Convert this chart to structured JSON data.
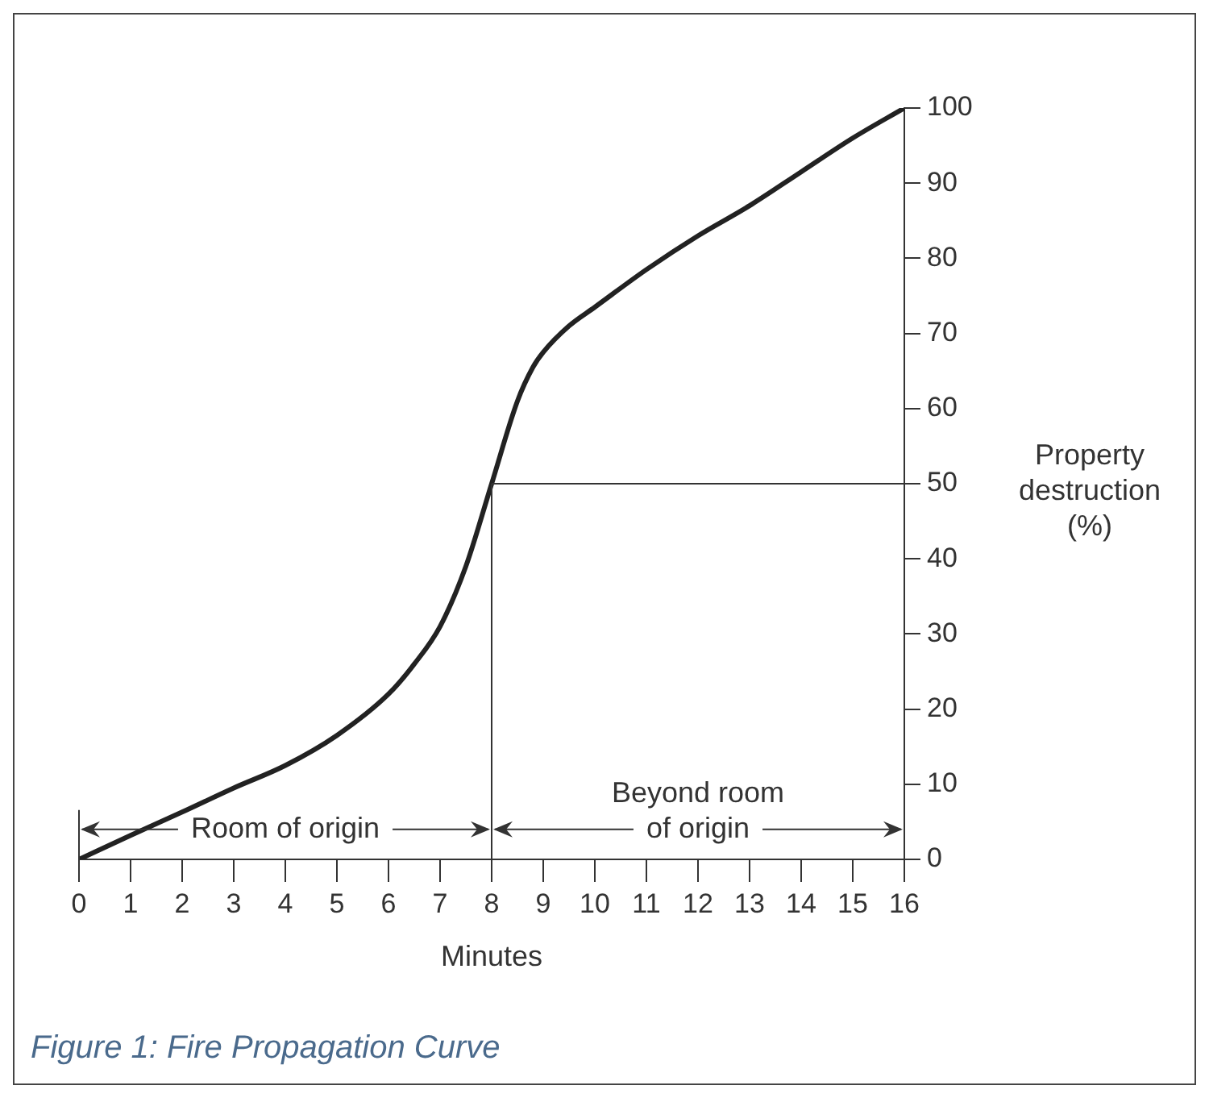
{
  "chart_data": {
    "type": "line",
    "xlabel": "Minutes",
    "ylabel": "Property destruction (%)",
    "series": [
      {
        "color": "#222222",
        "x": [
          0,
          1,
          2,
          3,
          4,
          5,
          6,
          6.5,
          7,
          7.5,
          8,
          8.5,
          8.8,
          9,
          9.5,
          10,
          11,
          12,
          13,
          14,
          15,
          16
        ],
        "values": [
          0,
          3.2,
          6.3,
          9.5,
          12.5,
          16.5,
          22,
          26,
          31,
          39,
          50,
          61,
          65.5,
          67.5,
          71,
          73.5,
          78.5,
          83,
          87,
          91.5,
          96,
          100
        ]
      }
    ],
    "xlim": [
      0,
      16
    ],
    "xticks": [
      0,
      1,
      2,
      3,
      4,
      5,
      6,
      7,
      8,
      9,
      10,
      11,
      12,
      13,
      14,
      15,
      16
    ],
    "ylim": [
      0,
      100
    ],
    "yticks": [
      0,
      10,
      20,
      30,
      40,
      50,
      60,
      70,
      80,
      90,
      100
    ],
    "ref_lines": [
      {
        "axis": "x",
        "value": 8
      },
      {
        "axis": "y",
        "value": 50
      }
    ],
    "annotations": [
      {
        "text": "Room of origin",
        "x": 8,
        "y": 4
      },
      {
        "text": "Beyond room of origin",
        "x": 8,
        "y": 4
      },
      "Figure 1: Fire Propagation Curve"
    ],
    "grid": false,
    "legend": false,
    "marker": "none",
    "line_style": "solid"
  }
}
